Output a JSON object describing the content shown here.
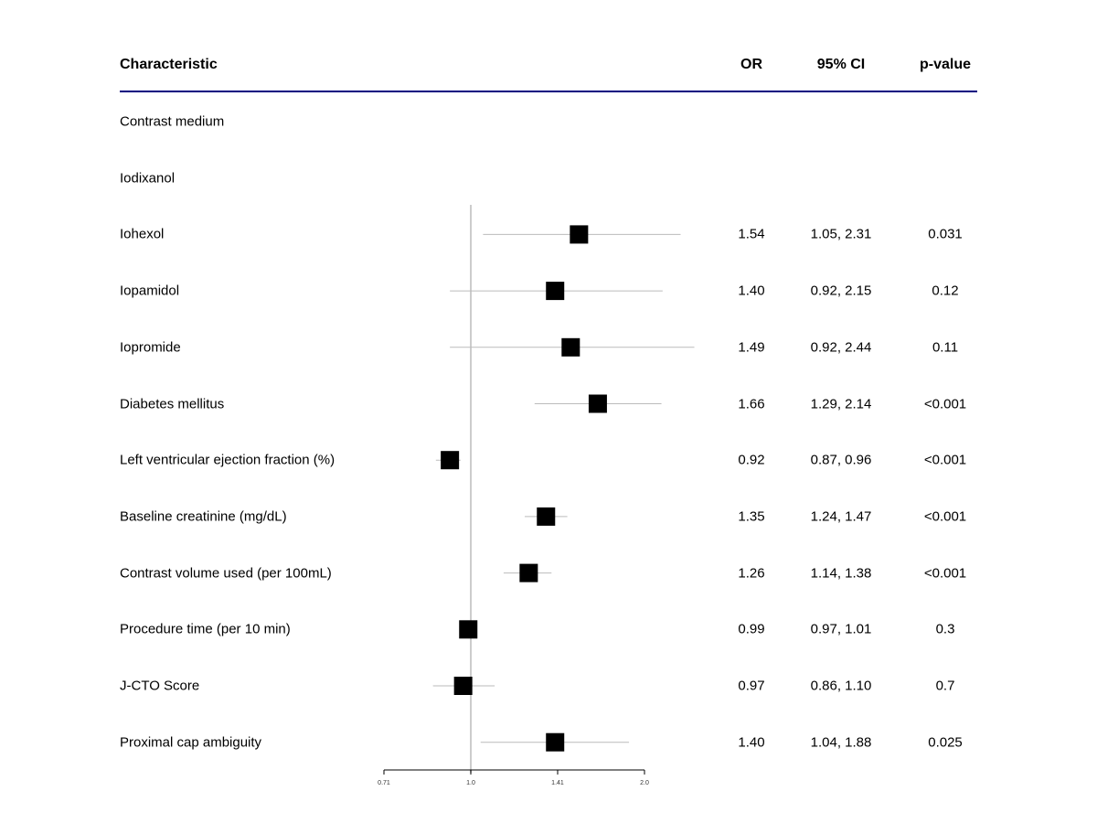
{
  "chart_data": {
    "type": "forest",
    "headers": {
      "characteristic": "Characteristic",
      "or": "OR",
      "ci": "95% CI",
      "p": "p-value"
    },
    "x_scale": "log",
    "reference_line": 1.0,
    "xticks": [
      "0.71",
      "1.0",
      "1.41",
      "2.0"
    ],
    "xtick_values": [
      0.7071,
      1.0,
      1.4142,
      2.0
    ],
    "rows": [
      {
        "label": "Contrast medium"
      },
      {
        "label": "Iodixanol"
      },
      {
        "label": "Iohexol",
        "or": 1.54,
        "lo": 1.05,
        "hi": 2.31,
        "or_text": "1.54",
        "ci_text": "1.05, 2.31",
        "p_text": "0.031"
      },
      {
        "label": "Iopamidol",
        "or": 1.4,
        "lo": 0.92,
        "hi": 2.15,
        "or_text": "1.40",
        "ci_text": "0.92, 2.15",
        "p_text": "0.12"
      },
      {
        "label": "Iopromide",
        "or": 1.49,
        "lo": 0.92,
        "hi": 2.44,
        "or_text": "1.49",
        "ci_text": "0.92, 2.44",
        "p_text": "0.11"
      },
      {
        "label": "Diabetes mellitus",
        "or": 1.66,
        "lo": 1.29,
        "hi": 2.14,
        "or_text": "1.66",
        "ci_text": "1.29, 2.14",
        "p_text": "<0.001"
      },
      {
        "label": "Left ventricular ejection fraction (%)",
        "or": 0.92,
        "lo": 0.87,
        "hi": 0.96,
        "or_text": "0.92",
        "ci_text": "0.87, 0.96",
        "p_text": "<0.001"
      },
      {
        "label": "Baseline creatinine (mg/dL)",
        "or": 1.35,
        "lo": 1.24,
        "hi": 1.47,
        "or_text": "1.35",
        "ci_text": "1.24, 1.47",
        "p_text": "<0.001"
      },
      {
        "label": "Contrast volume used (per 100mL)",
        "or": 1.26,
        "lo": 1.14,
        "hi": 1.38,
        "or_text": "1.26",
        "ci_text": "1.14, 1.38",
        "p_text": "<0.001"
      },
      {
        "label": "Procedure time (per 10 min)",
        "or": 0.99,
        "lo": 0.97,
        "hi": 1.01,
        "or_text": "0.99",
        "ci_text": "0.97, 1.01",
        "p_text": "0.3"
      },
      {
        "label": "J-CTO Score",
        "or": 0.97,
        "lo": 0.86,
        "hi": 1.1,
        "or_text": "0.97",
        "ci_text": "0.86, 1.10",
        "p_text": "0.7"
      },
      {
        "label": "Proximal cap ambiguity",
        "or": 1.4,
        "lo": 1.04,
        "hi": 1.88,
        "or_text": "1.40",
        "ci_text": "1.04, 1.88",
        "p_text": "0.025"
      }
    ],
    "colors": {
      "header_rule": "#000080",
      "ref_line": "#cccccc",
      "ci_line": "#bbbbbb",
      "marker": "#000000"
    }
  }
}
